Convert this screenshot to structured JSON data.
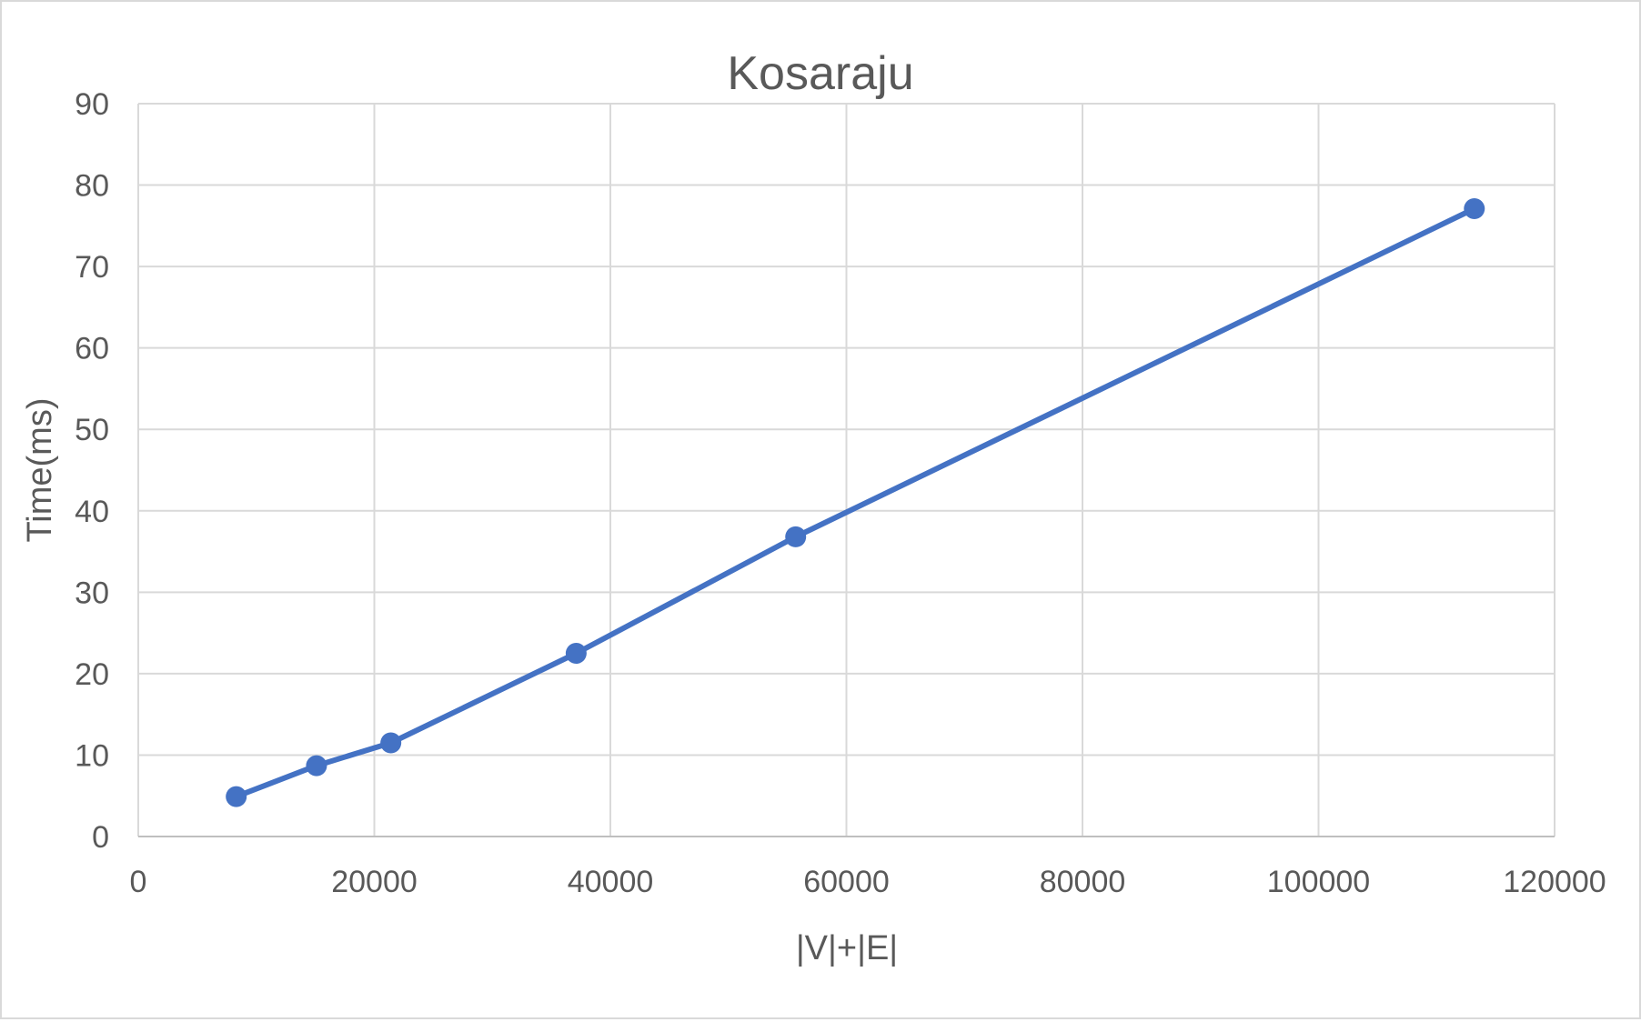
{
  "chart_data": {
    "type": "scatter",
    "title": "Kosaraju",
    "xlabel": "|V|+|E|",
    "ylabel": "Time(ms)",
    "xlim": [
      0,
      120000
    ],
    "ylim": [
      0,
      90
    ],
    "x_ticks": [
      "0",
      "20000",
      "40000",
      "60000",
      "80000",
      "100000",
      "120000"
    ],
    "y_ticks": [
      "0",
      "10",
      "20",
      "30",
      "40",
      "50",
      "60",
      "70",
      "80",
      "90"
    ],
    "grid": true,
    "legend": "none",
    "series": [
      {
        "color": "#4472c4",
        "points": [
          {
            "x": 8300,
            "y": 4.9
          },
          {
            "x": 15100,
            "y": 8.7
          },
          {
            "x": 21400,
            "y": 11.5
          },
          {
            "x": 37100,
            "y": 22.5
          },
          {
            "x": 55700,
            "y": 36.8
          },
          {
            "x": 113200,
            "y": 77.1
          }
        ]
      }
    ]
  }
}
